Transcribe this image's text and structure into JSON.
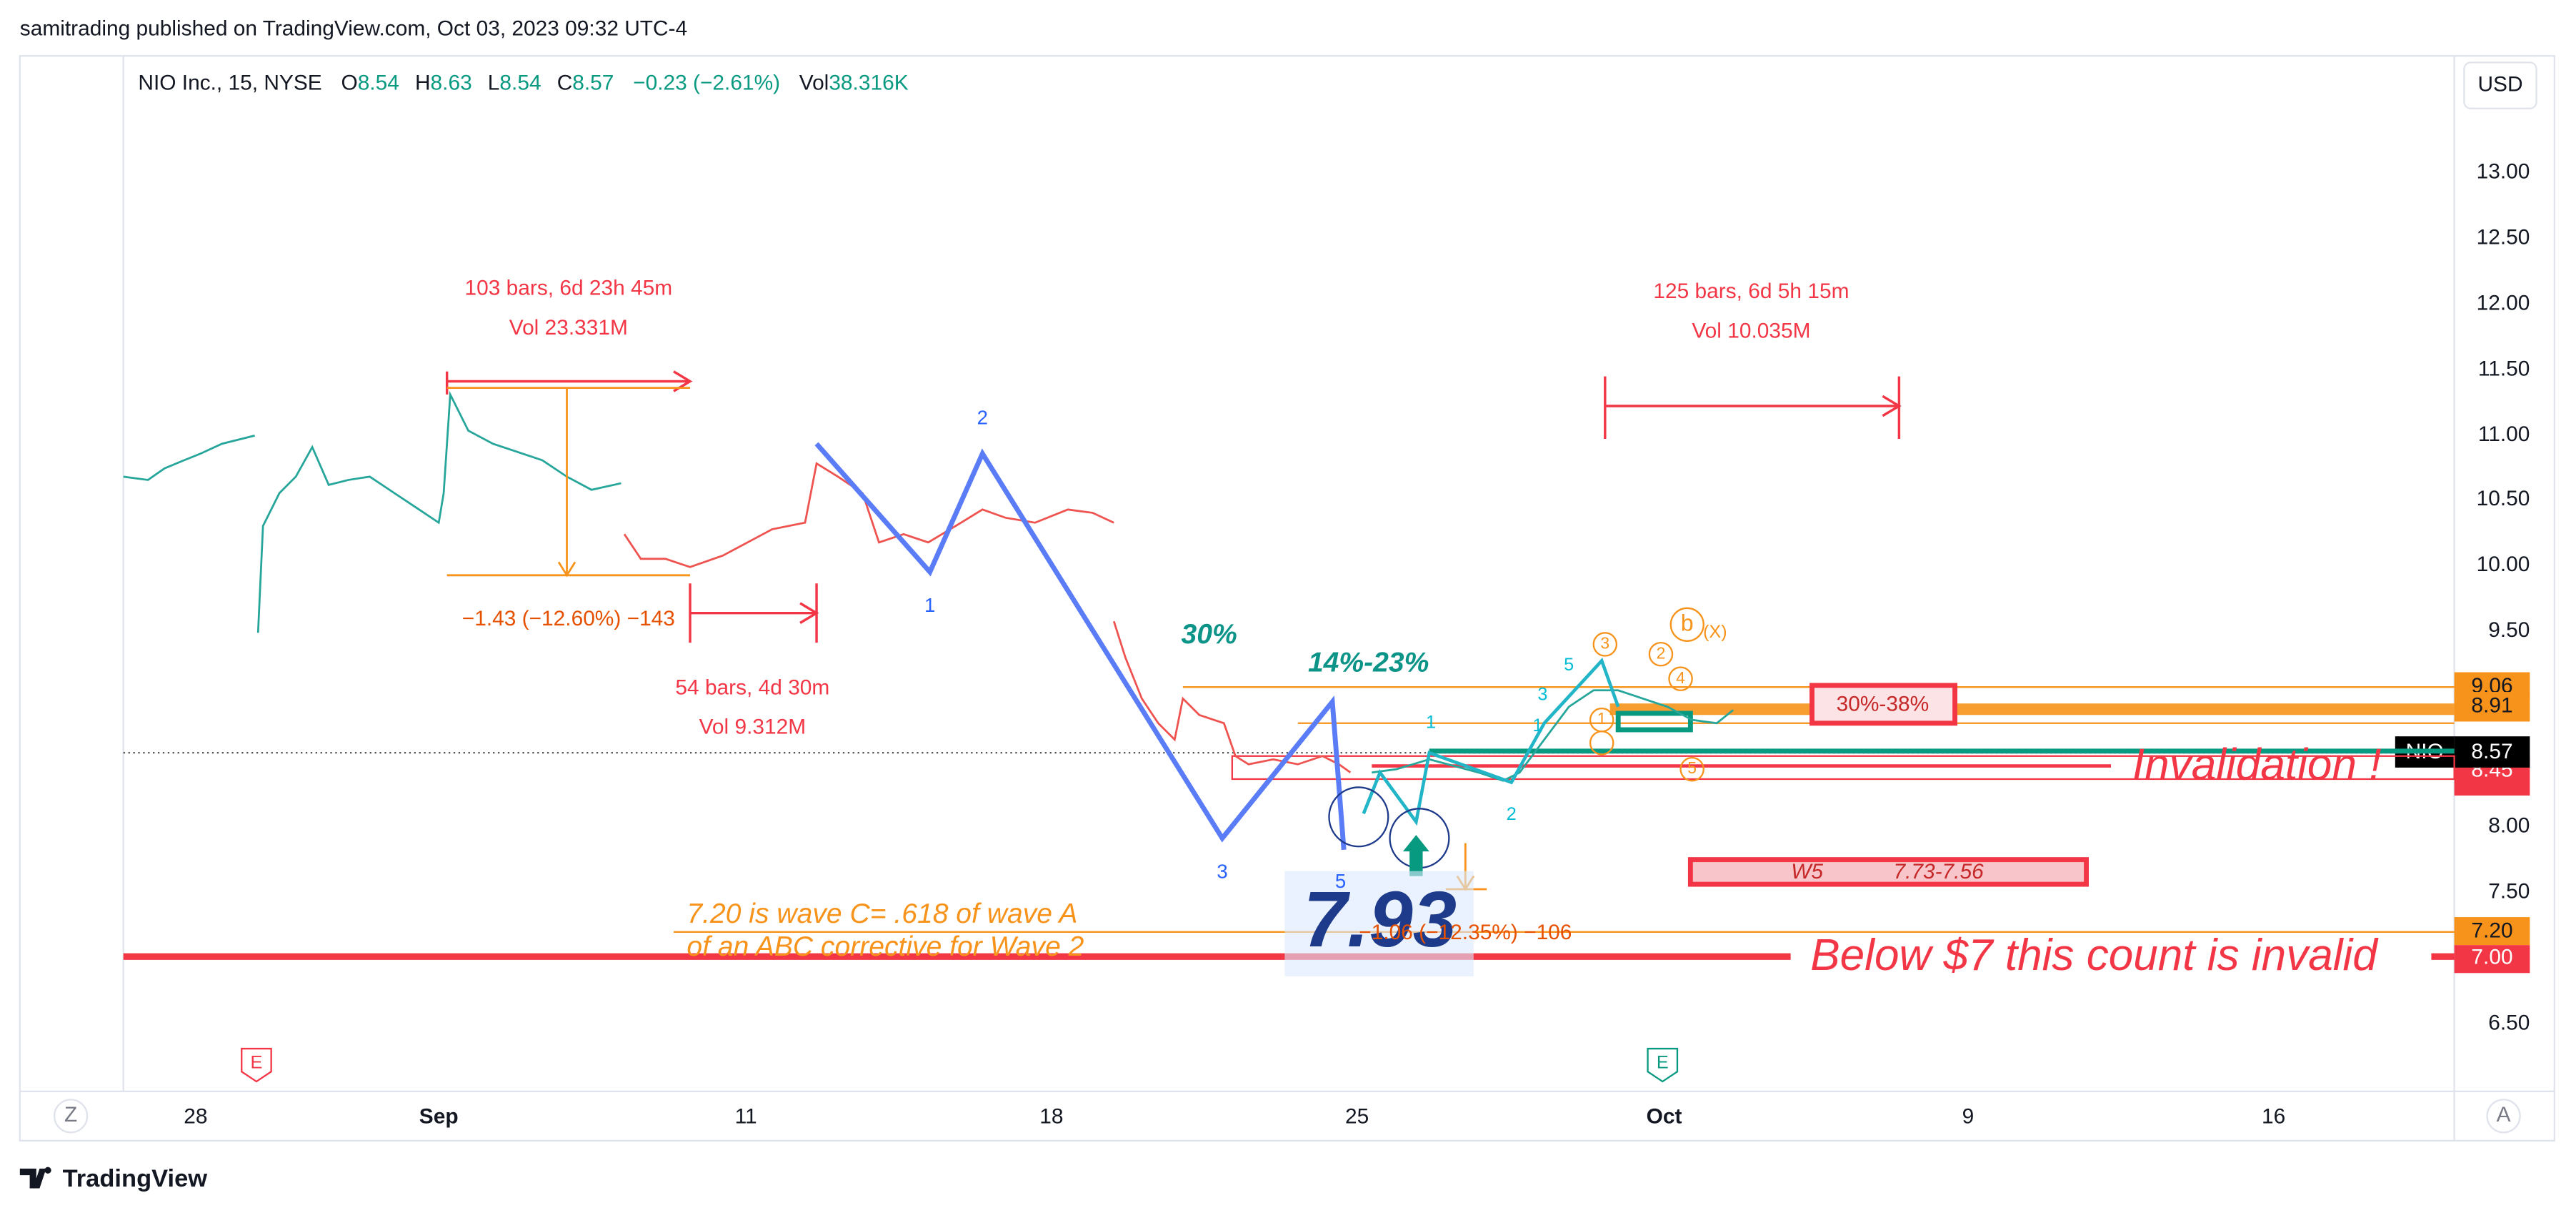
{
  "header": {
    "published": "samitrading published on TradingView.com, Oct 03, 2023 09:32 UTC-4"
  },
  "legend": {
    "symbol": "NIO Inc., 15, NYSE",
    "open_label": "O",
    "open": "8.54",
    "high_label": "H",
    "high": "8.63",
    "low_label": "L",
    "low": "8.54",
    "close_label": "C",
    "close": "8.57",
    "change": "−0.23 (−2.61%)",
    "volume_label": "Vol",
    "volume": "38.316K"
  },
  "currency": "USD",
  "price_axis": {
    "labels": [
      "13.00",
      "12.50",
      "12.00",
      "11.50",
      "11.00",
      "10.50",
      "10.00",
      "9.50",
      "8.00",
      "7.50",
      "6.50"
    ],
    "tags": {
      "upper": "9.06",
      "mid": "8.91",
      "symbol": "NIO",
      "last": "8.57",
      "lower": "8.45",
      "wave_c": "7.20",
      "invalid": "7.00"
    }
  },
  "time_axis": {
    "labels": [
      "28",
      "Sep",
      "11",
      "18",
      "25",
      "Oct",
      "9",
      "16"
    ]
  },
  "annotations": {
    "range1_bars": "103 bars, 6d 23h 45m",
    "range1_vol": "Vol 23.331M",
    "drop1": "−1.43 (−12.60%) −143",
    "range2_bars": "54 bars, 4d 30m",
    "range2_vol": "Vol 9.312M",
    "range3_bars": "125 bars, 6d 5h 15m",
    "range3_vol": "Vol 10.035M",
    "pct30": "30%",
    "pct14_23": "14%-23%",
    "low_price": "7.93",
    "drop2": "−1.06 (−12.35%) −106",
    "wave_c_line1": "7.20 is wave C= .618 of wave A",
    "wave_c_line2": "of an ABC corrective for Wave 2",
    "below7": "Below $7 this count is invalid",
    "invalidation": "Invalidation !",
    "w5_label": "W5",
    "w5_range": "7.73-7.56",
    "fib_zone": "30%-38%"
  },
  "wave_labels": {
    "blue": [
      "1",
      "2",
      "3",
      "5"
    ],
    "teal": [
      "1",
      "2",
      "3",
      "5",
      "1"
    ],
    "orange": [
      "b",
      "(X)",
      "2",
      "4",
      "1",
      "3",
      "5"
    ]
  },
  "markers": [
    "E",
    "E"
  ],
  "buttons": {
    "left": "Z",
    "right": "A"
  },
  "footer": {
    "brand": "TradingView"
  }
}
